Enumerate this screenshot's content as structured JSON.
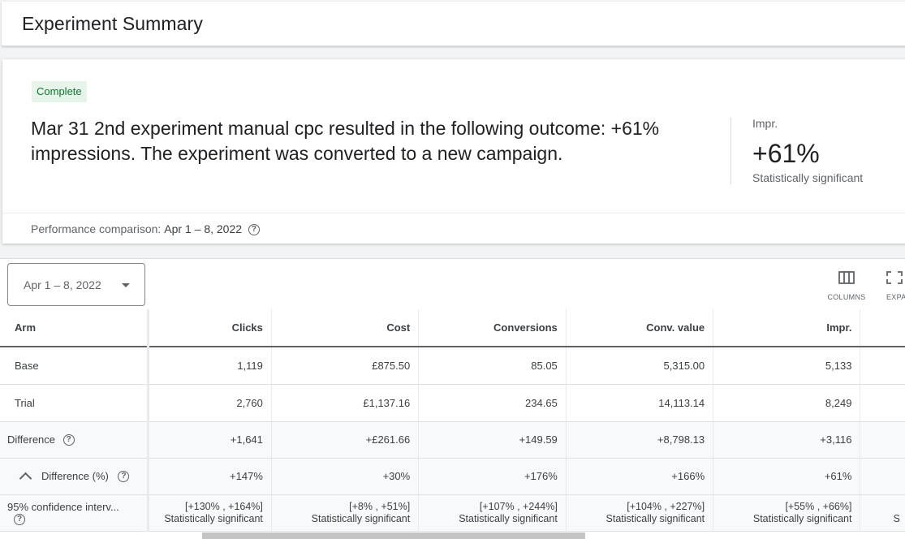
{
  "header": {
    "title": "Experiment Summary"
  },
  "summary": {
    "status": "Complete",
    "text": "Mar 31 2nd experiment manual cpc resulted in the following outcome: +61% impressions. The experiment was converted to a new campaign.",
    "metric": {
      "label": "Impr.",
      "value": "+61%",
      "significance": "Statistically significant"
    },
    "performance": {
      "label": "Performance comparison:",
      "range": "Apr 1 – 8, 2022"
    }
  },
  "toolbar": {
    "date_range": "Apr 1 – 8, 2022",
    "columns_label": "COLUMNS",
    "expand_label": "EXPA"
  },
  "table": {
    "columns": [
      "Arm",
      "Clicks",
      "Cost",
      "Conversions",
      "Conv. value",
      "Impr."
    ],
    "rows": [
      {
        "arm": "Base",
        "values": [
          "1,119",
          "£875.50",
          "85.05",
          "5,315.00",
          "5,133"
        ]
      },
      {
        "arm": "Trial",
        "values": [
          "2,760",
          "£1,137.16",
          "234.65",
          "14,113.14",
          "8,249"
        ]
      },
      {
        "arm": "Difference",
        "values": [
          "+1,641",
          "+£261.66",
          "+149.59",
          "+8,798.13",
          "+3,116"
        ]
      },
      {
        "arm": "Difference (%)",
        "values": [
          "+147%",
          "+30%",
          "+176%",
          "+166%",
          "+61%"
        ]
      },
      {
        "arm": "95% confidence interv...",
        "values": [
          "[+130% , +164%]",
          "[+8% , +51%]",
          "[+107% , +244%]",
          "[+104% , +227%]",
          "[+55% , +66%]"
        ],
        "sub": [
          "Statistically significant",
          "Statistically significant",
          "Statistically significant",
          "Statistically significant",
          "Statistically significant"
        ],
        "cut_sub": "S"
      }
    ]
  },
  "icons": [
    "help-circle-icon",
    "dropdown-arrow-icon",
    "columns-icon",
    "expand-icon",
    "chevron-up-icon"
  ],
  "colors": {
    "complete_chip_bg": "#e6f4ea",
    "complete_chip_text": "#137333"
  }
}
